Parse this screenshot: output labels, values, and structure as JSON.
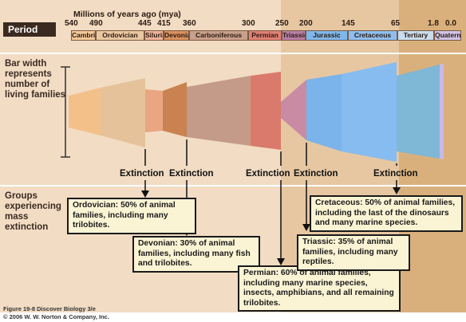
{
  "header": {
    "period_label": "Period",
    "mya_label": "Millions of years ago (mya)"
  },
  "ticks": [
    "540",
    "490",
    "445",
    "415",
    "360",
    "300",
    "250",
    "200",
    "145",
    "65",
    "1.8",
    "0.0"
  ],
  "periods": [
    {
      "name": "Cambrian",
      "color": "#f4c89a"
    },
    {
      "name": "Ordovician",
      "color": "#e9c7a0"
    },
    {
      "name": "Silurian",
      "color": "#f0b39a"
    },
    {
      "name": "Devonian",
      "color": "#d9925e"
    },
    {
      "name": "Carboniferous",
      "color": "#c9a08c"
    },
    {
      "name": "Permian",
      "color": "#e08075"
    },
    {
      "name": "Triassic",
      "color": "#b97ea6"
    },
    {
      "name": "Jurassic",
      "color": "#7fb7ea"
    },
    {
      "name": "Cretaceous",
      "color": "#8fbff0"
    },
    {
      "name": "Tertiary",
      "color": "#c9dcec"
    },
    {
      "name": "Quaternary",
      "color": "#d0c4e8"
    }
  ],
  "left_labels": {
    "bar_width": "Bar width represents number of living families",
    "groups": "Groups experiencing mass extinction"
  },
  "extinction_label": "Extinction",
  "extinctions": [
    {
      "id": "ordovician",
      "text": "Ordovician: 50% of animal families, including many trilobites."
    },
    {
      "id": "devonian",
      "text": "Devonian: 30% of animal families, including many fish and trilobites."
    },
    {
      "id": "permian",
      "text": "Permian: 60% of animal families, including many marine species, insects, amphibians, and all remaining trilobites."
    },
    {
      "id": "triassic",
      "text": "Triassic: 35% of animal families, including many reptiles."
    },
    {
      "id": "cretaceous",
      "text": "Cretaceous: 50% of animal families, including the last of the dinosaurs and many marine species."
    }
  ],
  "caption": {
    "line1": "Figure 19-8  Discover Biology 3/e",
    "line2": "© 2006 W. W. Norton & Company, Inc."
  }
}
